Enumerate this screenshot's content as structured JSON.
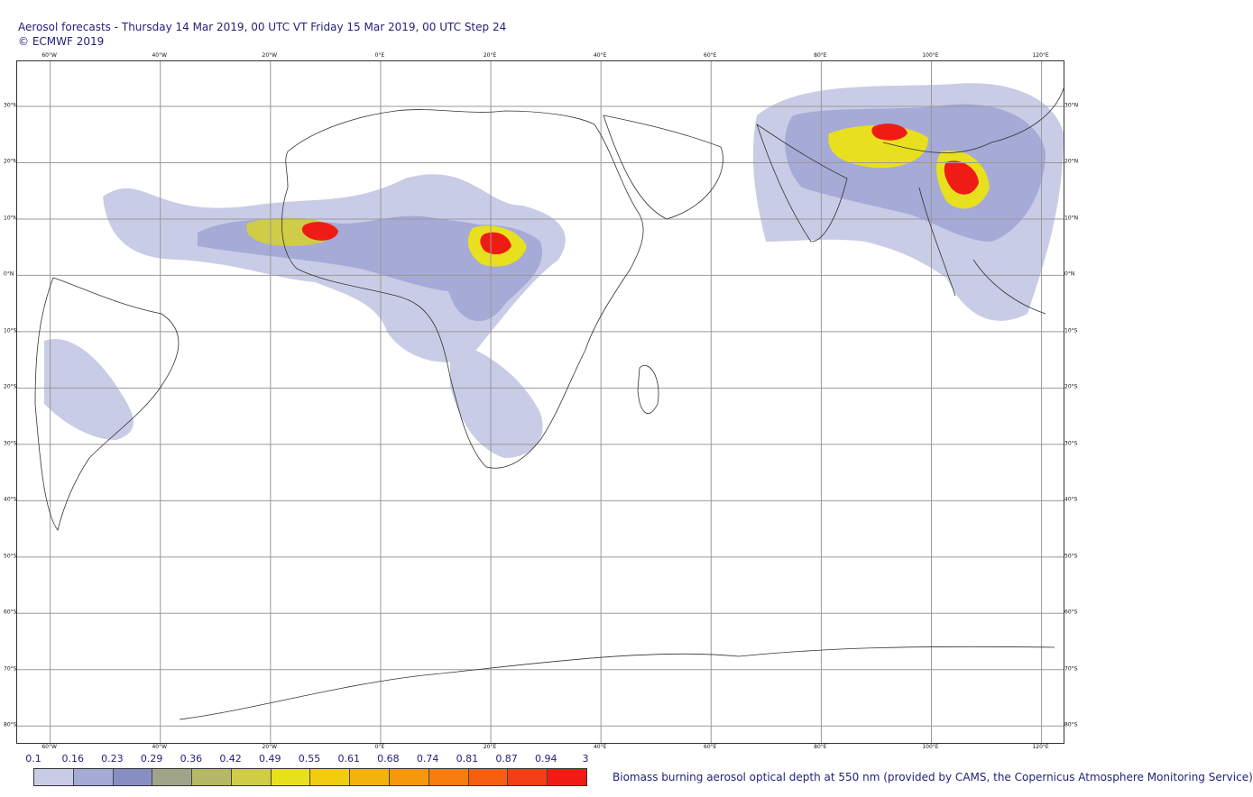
{
  "header": {
    "title": "Aerosol forecasts - Thursday 14 Mar 2019, 00 UTC VT Friday 15 Mar 2019, 00 UTC Step 24",
    "copyright": "© ECMWF 2019"
  },
  "map": {
    "projection": "equirectangular",
    "lon_range": [
      -66,
      124
    ],
    "lat_range": [
      -83,
      38
    ],
    "lon_labels": [
      "60°W",
      "40°W",
      "20°W",
      "0°E",
      "20°E",
      "40°E",
      "60°E",
      "80°E",
      "100°E",
      "120°E"
    ],
    "lat_labels": [
      "30°N",
      "20°N",
      "10°N",
      "0°N",
      "10°S",
      "20°S",
      "30°S",
      "40°S",
      "50°S",
      "60°S",
      "70°S",
      "80°S"
    ],
    "field": "Biomass burning aerosol optical depth at 550 nm",
    "colors": {
      "grid": "#999999",
      "coast": "#333333"
    }
  },
  "colorbar": {
    "levels": [
      "0.1",
      "0.16",
      "0.23",
      "0.29",
      "0.36",
      "0.42",
      "0.49",
      "0.55",
      "0.61",
      "0.68",
      "0.74",
      "0.81",
      "0.87",
      "0.94",
      "3"
    ],
    "colors": [
      "#c9cce6",
      "#a5aad6",
      "#868ec2",
      "#a0a58a",
      "#b6b865",
      "#cfcc48",
      "#e8e01e",
      "#f2cc10",
      "#f4b20e",
      "#f5980e",
      "#f57d10",
      "#f45f12",
      "#f23e14",
      "#ef1c16"
    ],
    "caption": "Biomass burning aerosol optical depth at 550 nm (provided by CAMS, the Copernicus Atmosphere Monitoring Service)"
  }
}
